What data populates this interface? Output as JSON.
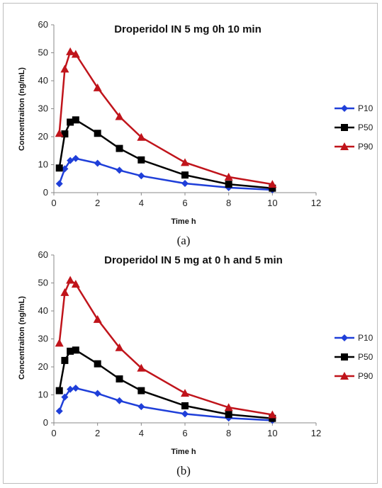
{
  "chart_data": [
    {
      "type": "line",
      "title": "Droperidol IN 5 mg 0h 10 min",
      "xlabel": "Time h",
      "ylabel": "Concentraiton (ng/mL)",
      "xlim": [
        0,
        12
      ],
      "ylim": [
        0,
        60
      ],
      "xticks": [
        0,
        2,
        4,
        6,
        8,
        10,
        12
      ],
      "yticks": [
        0,
        10,
        20,
        30,
        40,
        50,
        60
      ],
      "legend_position": "right",
      "caption": "(a)",
      "x": [
        0.25,
        0.5,
        0.75,
        1,
        2,
        3,
        4,
        6,
        8,
        10
      ],
      "series": [
        {
          "name": "P10",
          "color": "#1f3fd9",
          "marker": "diamond",
          "values": [
            3.2,
            8.5,
            11.5,
            12.2,
            10.5,
            8.0,
            6.0,
            3.3,
            1.8,
            1.0
          ]
        },
        {
          "name": "P50",
          "color": "#000000",
          "marker": "square",
          "values": [
            8.8,
            21.0,
            25.2,
            26.0,
            21.2,
            15.8,
            11.7,
            6.3,
            3.0,
            1.6
          ]
        },
        {
          "name": "P90",
          "color": "#c0141b",
          "marker": "triangle",
          "values": [
            21.2,
            44.2,
            50.4,
            49.5,
            37.5,
            27.2,
            19.8,
            10.8,
            5.6,
            3.0
          ]
        }
      ]
    },
    {
      "type": "line",
      "title": "Droperidol IN 5 mg at 0 h and 5 min",
      "xlabel": "Time h",
      "ylabel": "Concentraiton (ng/mL)",
      "xlim": [
        0,
        12
      ],
      "ylim": [
        0,
        60
      ],
      "xticks": [
        0,
        2,
        4,
        6,
        8,
        10,
        12
      ],
      "yticks": [
        0,
        10,
        20,
        30,
        40,
        50,
        60
      ],
      "legend_position": "right",
      "caption": "(b)",
      "x": [
        0.25,
        0.5,
        0.75,
        1,
        2,
        3,
        4,
        6,
        8,
        10
      ],
      "series": [
        {
          "name": "P10",
          "color": "#1f3fd9",
          "marker": "diamond",
          "values": [
            4.2,
            9.2,
            12.0,
            12.4,
            10.5,
            7.9,
            5.8,
            3.2,
            1.7,
            0.9
          ]
        },
        {
          "name": "P50",
          "color": "#000000",
          "marker": "square",
          "values": [
            11.5,
            22.3,
            25.6,
            26.0,
            21.1,
            15.7,
            11.5,
            6.1,
            3.0,
            1.6
          ]
        },
        {
          "name": "P90",
          "color": "#c0141b",
          "marker": "triangle",
          "values": [
            28.5,
            46.6,
            51.0,
            49.6,
            37.0,
            26.9,
            19.6,
            10.6,
            5.5,
            2.9
          ]
        }
      ]
    }
  ]
}
